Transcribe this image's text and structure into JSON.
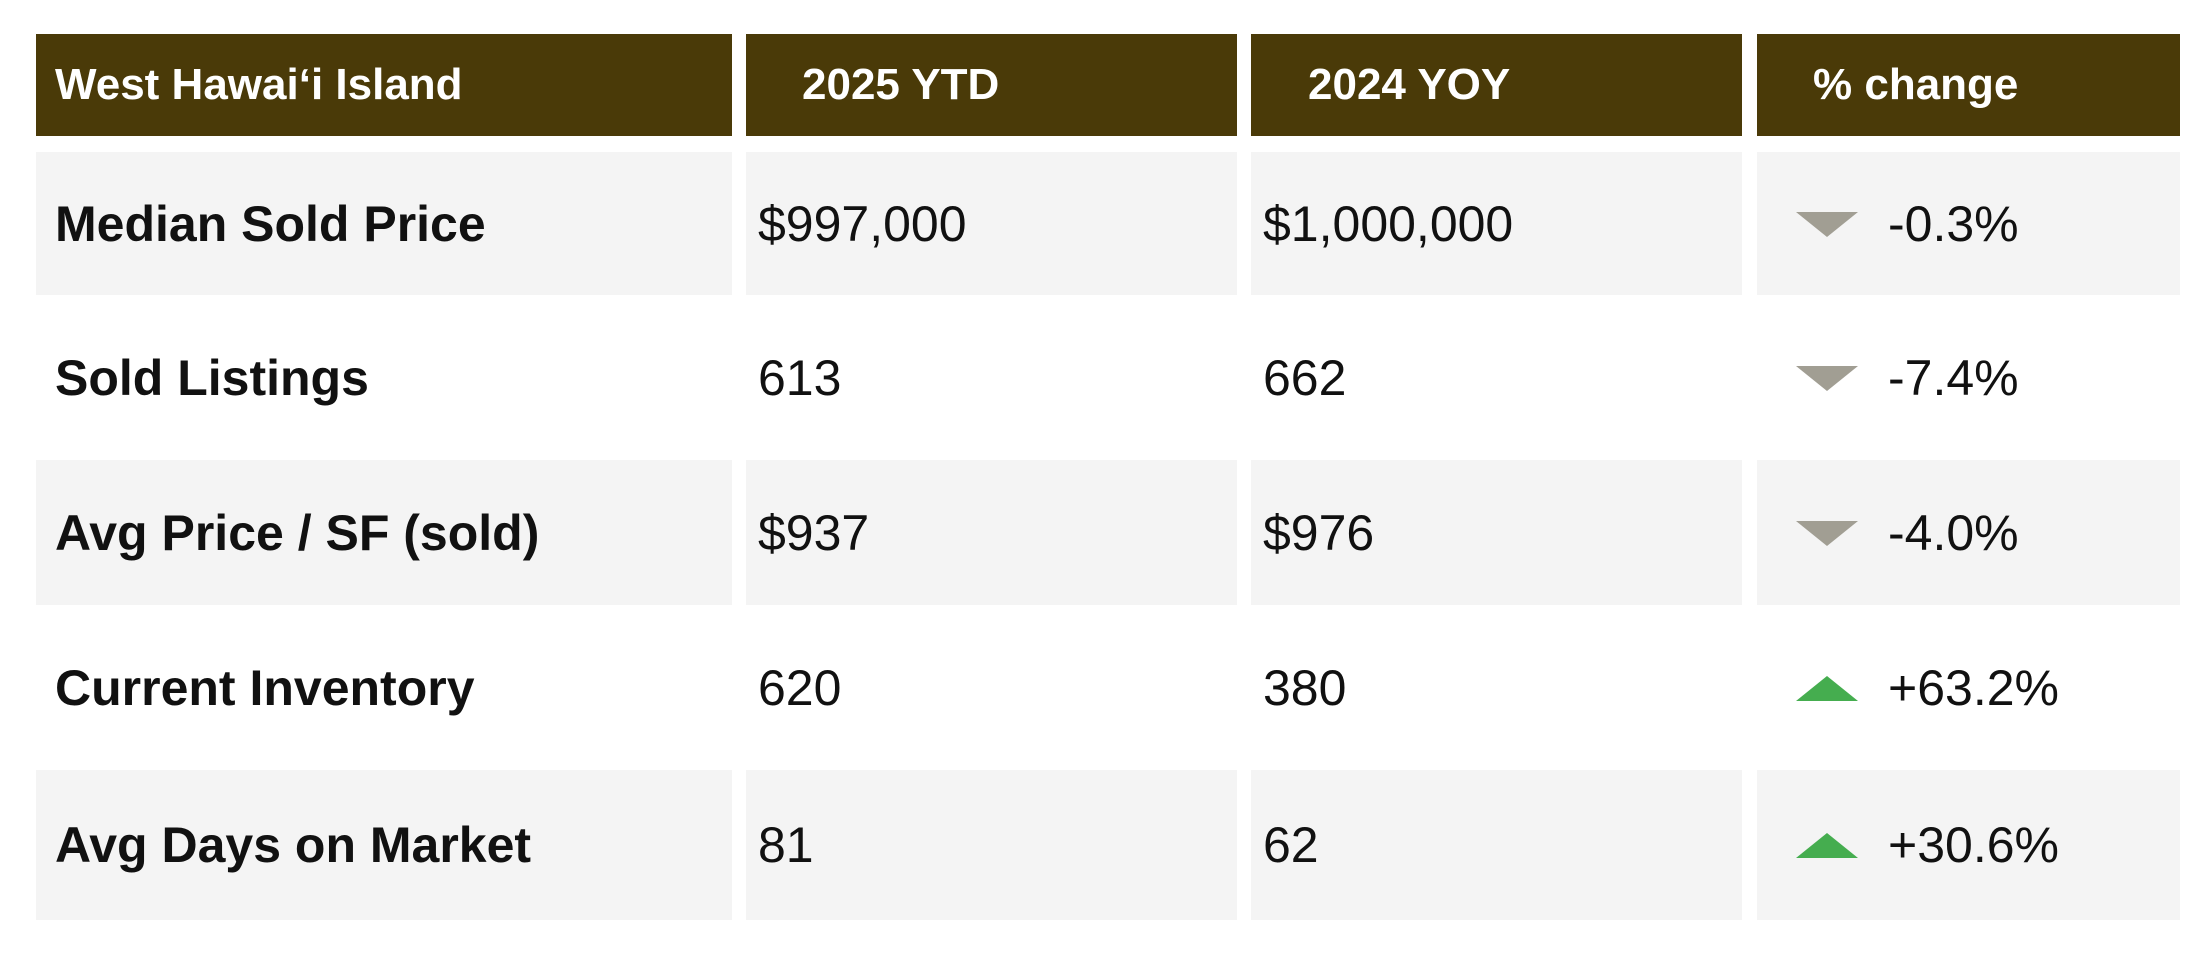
{
  "table": {
    "header": [
      "West Hawaiʻi Island",
      "2025 YTD",
      "2024 YOY",
      "% change"
    ],
    "rows": [
      [
        "Median Sold Price",
        "$997,000",
        "$1,000,000",
        "-0.3%"
      ],
      [
        "Sold Listings",
        "613",
        "662",
        "-7.4%"
      ],
      [
        "Avg Price / SF (sold)",
        "$937",
        "$976",
        "-4.0%"
      ],
      [
        "Current Inventory",
        "620",
        "380",
        "+63.2%"
      ],
      [
        "Avg Days on Market",
        "81",
        "62",
        "+30.6%"
      ]
    ]
  }
}
